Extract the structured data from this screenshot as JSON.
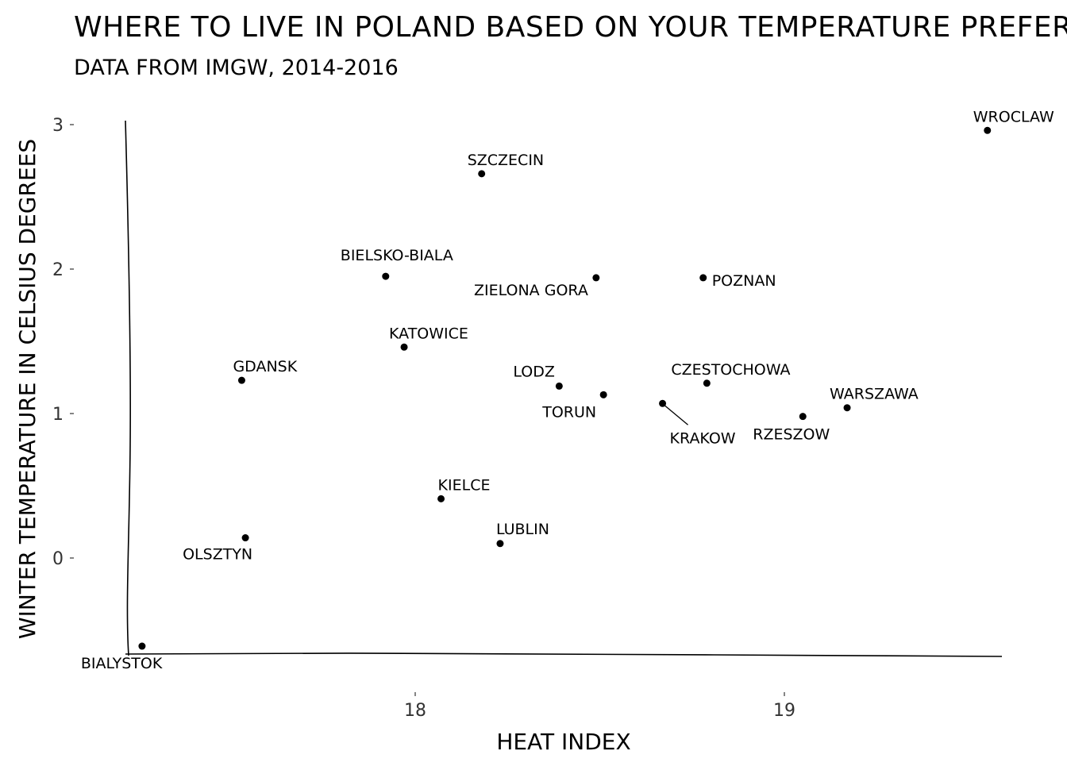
{
  "chart_data": {
    "type": "scatter",
    "title": "WHERE TO LIVE IN POLAND BASED ON YOUR TEMPERATURE PREFEREN",
    "subtitle": "DATA FROM IMGW, 2014-2016",
    "xlabel": "HEAT INDEX",
    "ylabel": "WINTER TEMPERATURE IN CELSIUS DEGREES",
    "xlim": [
      17.23,
      19.6
    ],
    "ylim": [
      -0.68,
      3.12
    ],
    "x_ticks": [
      18,
      19
    ],
    "x_tick_labels": [
      "18",
      "19"
    ],
    "y_ticks": [
      0,
      1,
      2,
      3
    ],
    "y_tick_labels": [
      "0",
      "1",
      "2",
      "3"
    ],
    "grid": false,
    "points": [
      {
        "label": "WROCLAW",
        "x": 19.55,
        "y": 2.96
      },
      {
        "label": "SZCZECIN",
        "x": 18.18,
        "y": 2.66
      },
      {
        "label": "BIELSKO-BIALA",
        "x": 17.92,
        "y": 1.95
      },
      {
        "label": "ZIELONA GORA",
        "x": 18.49,
        "y": 1.94
      },
      {
        "label": "POZNAN",
        "x": 18.78,
        "y": 1.94
      },
      {
        "label": "KATOWICE",
        "x": 17.97,
        "y": 1.46
      },
      {
        "label": "GDANSK",
        "x": 17.53,
        "y": 1.23
      },
      {
        "label": "LODZ",
        "x": 18.39,
        "y": 1.19
      },
      {
        "label": "CZESTOCHOWA",
        "x": 18.79,
        "y": 1.21
      },
      {
        "label": "TORUN",
        "x": 18.51,
        "y": 1.13
      },
      {
        "label": "KRAKOW",
        "x": 18.67,
        "y": 1.07
      },
      {
        "label": "WARSZAWA",
        "x": 19.17,
        "y": 1.04
      },
      {
        "label": "RZESZOW",
        "x": 19.05,
        "y": 0.98
      },
      {
        "label": "KIELCE",
        "x": 18.07,
        "y": 0.41
      },
      {
        "label": "LUBLIN",
        "x": 18.23,
        "y": 0.1
      },
      {
        "label": "OLSZTYN",
        "x": 17.54,
        "y": 0.14
      },
      {
        "label": "BIALYSTOK",
        "x": 17.26,
        "y": -0.61
      }
    ]
  }
}
